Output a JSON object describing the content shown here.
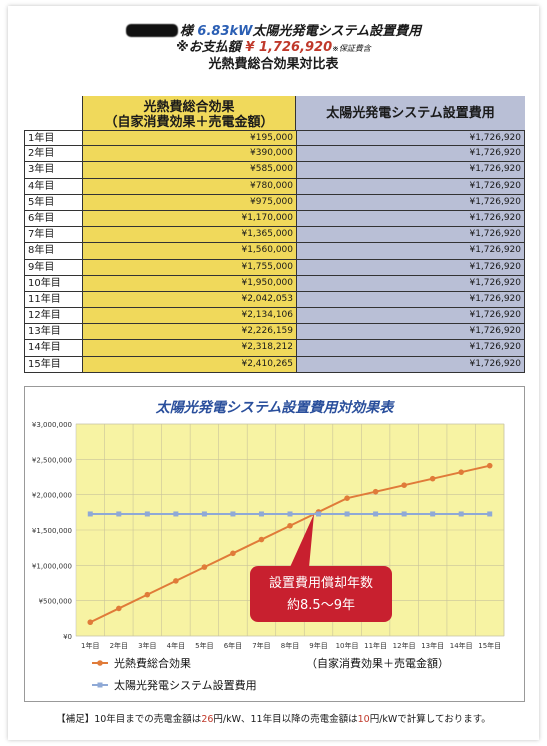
{
  "header": {
    "line1_rest": "様 6.83kW 太陽光発電システム設置費用",
    "line1_kw": "6.83kW",
    "line1_tail": "太陽光発電システム設置費用",
    "line2_label": "※お支払額",
    "line2_amount": "¥ 1,726,920",
    "line2_note": "※保証費含",
    "subtitle": "光熱費総合効果対比表"
  },
  "table": {
    "col1_head_line1": "光熱費総合効果",
    "col1_head_line2": "（自家消費効果＋売電金額）",
    "col2_head": "太陽光発電システム設置費用",
    "rows": [
      {
        "year": "1年目",
        "effect": "¥195,000",
        "cost": "¥1,726,920"
      },
      {
        "year": "2年目",
        "effect": "¥390,000",
        "cost": "¥1,726,920"
      },
      {
        "year": "3年目",
        "effect": "¥585,000",
        "cost": "¥1,726,920"
      },
      {
        "year": "4年目",
        "effect": "¥780,000",
        "cost": "¥1,726,920"
      },
      {
        "year": "5年目",
        "effect": "¥975,000",
        "cost": "¥1,726,920"
      },
      {
        "year": "6年目",
        "effect": "¥1,170,000",
        "cost": "¥1,726,920"
      },
      {
        "year": "7年目",
        "effect": "¥1,365,000",
        "cost": "¥1,726,920"
      },
      {
        "year": "8年目",
        "effect": "¥1,560,000",
        "cost": "¥1,726,920"
      },
      {
        "year": "9年目",
        "effect": "¥1,755,000",
        "cost": "¥1,726,920"
      },
      {
        "year": "10年目",
        "effect": "¥1,950,000",
        "cost": "¥1,726,920"
      },
      {
        "year": "11年目",
        "effect": "¥2,042,053",
        "cost": "¥1,726,920"
      },
      {
        "year": "12年目",
        "effect": "¥2,134,106",
        "cost": "¥1,726,920"
      },
      {
        "year": "13年目",
        "effect": "¥2,226,159",
        "cost": "¥1,726,920"
      },
      {
        "year": "14年目",
        "effect": "¥2,318,212",
        "cost": "¥1,726,920"
      },
      {
        "year": "15年目",
        "effect": "¥2,410,265",
        "cost": "¥1,726,920"
      }
    ]
  },
  "chart_data": {
    "type": "line",
    "title": "太陽光発電システム設置費用対効果表",
    "categories": [
      "1年目",
      "2年目",
      "3年目",
      "4年目",
      "5年目",
      "6年目",
      "7年目",
      "8年目",
      "9年目",
      "10年目",
      "11年目",
      "12年目",
      "13年目",
      "14年目",
      "15年目"
    ],
    "series": [
      {
        "name": "光熱費総合効果",
        "values": [
          195000,
          390000,
          585000,
          780000,
          975000,
          1170000,
          1365000,
          1560000,
          1755000,
          1950000,
          2042053,
          2134106,
          2226159,
          2318212,
          2410265
        ],
        "color": "#e07b39"
      },
      {
        "name": "太陽光発電システム設置費用",
        "values": [
          1726920,
          1726920,
          1726920,
          1726920,
          1726920,
          1726920,
          1726920,
          1726920,
          1726920,
          1726920,
          1726920,
          1726920,
          1726920,
          1726920,
          1726920
        ],
        "color": "#8fa9d6"
      }
    ],
    "yticks": [
      "¥0",
      "¥500,000",
      "¥1,000,000",
      "¥1,500,000",
      "¥2,000,000",
      "¥2,500,000",
      "¥3,000,000"
    ],
    "ylim": [
      0,
      3000000
    ],
    "legend_note": "（自家消費効果＋売電金額）",
    "callout_line1": "設置費用償却年数",
    "callout_line2": "約8.5～9年",
    "plot_bg": "#f7f3a3",
    "callout_color": "#c8202f"
  },
  "note": {
    "prefix": "【補足】10年目までの売電金額は",
    "v1": "26",
    "mid": "円/kW、11年目以降の売電金額は",
    "v2": "10",
    "suffix": "円/kWで計算しております。"
  }
}
